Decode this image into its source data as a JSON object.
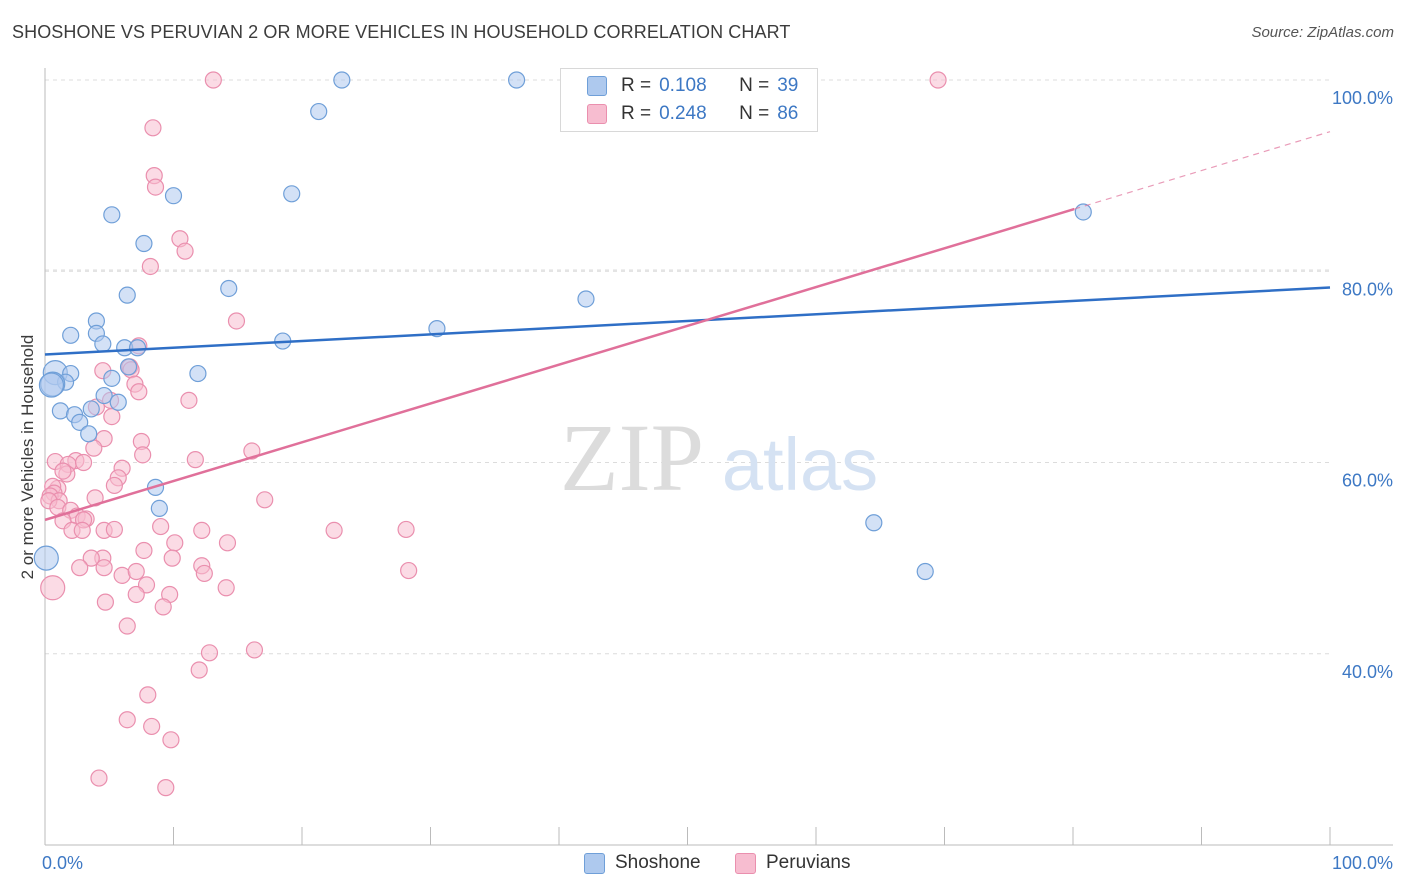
{
  "header": {
    "title": "SHOSHONE VS PERUVIAN 2 OR MORE VEHICLES IN HOUSEHOLD CORRELATION CHART",
    "source": "Source: ZipAtlas.com"
  },
  "watermark": {
    "zip": "ZIP",
    "atlas": "atlas"
  },
  "legend_top": {
    "rows": [
      {
        "r_label": "R =",
        "r_value": "0.108",
        "n_label": "N =",
        "n_value": "39"
      },
      {
        "r_label": "R =",
        "r_value": "0.248",
        "n_label": "N =",
        "n_value": "86"
      }
    ]
  },
  "legend_bottom": {
    "items": [
      "Shoshone",
      "Peruvians"
    ]
  },
  "colors": {
    "shoshone_fill": "#aec9ee",
    "shoshone_stroke": "#6f9fd8",
    "shoshone_line": "#2f6fc6",
    "peruvian_fill": "#f7bdd0",
    "peruvian_stroke": "#ea8fae",
    "peruvian_line": "#e0709a",
    "tick": "#3d78c4",
    "grid": "#dcdcdc"
  },
  "chart_data": {
    "type": "scatter",
    "title": "SHOSHONE VS PERUVIAN 2 OR MORE VEHICLES IN HOUSEHOLD CORRELATION CHART",
    "xlabel": "",
    "ylabel": "2 or more Vehicles in Household",
    "xlim": [
      0,
      100
    ],
    "ylim": [
      20,
      100
    ],
    "x_tick_labels": [
      "0.0%",
      "100.0%"
    ],
    "y_ticks": [
      40,
      60,
      80,
      100
    ],
    "y_tick_labels": [
      "40.0%",
      "60.0%",
      "80.0%",
      "100.0%"
    ],
    "grid": true,
    "legend_position": "top-center",
    "series": [
      {
        "name": "Shoshone",
        "r": 0.108,
        "n": 39,
        "trend": {
          "x": [
            0,
            100
          ],
          "y": [
            71.3,
            78.3
          ],
          "style": "solid"
        },
        "points": [
          [
            23.1,
            100.0
          ],
          [
            36.7,
            100.0
          ],
          [
            21.3,
            96.7
          ],
          [
            19.2,
            88.1
          ],
          [
            10.0,
            87.9
          ],
          [
            5.2,
            85.9
          ],
          [
            7.7,
            82.9
          ],
          [
            80.8,
            86.2
          ],
          [
            14.3,
            78.2
          ],
          [
            6.4,
            77.5
          ],
          [
            42.1,
            77.1
          ],
          [
            4.0,
            74.8
          ],
          [
            30.5,
            74.0
          ],
          [
            2.0,
            73.3
          ],
          [
            4.0,
            73.5
          ],
          [
            18.5,
            72.7
          ],
          [
            4.5,
            72.4
          ],
          [
            6.2,
            72.0
          ],
          [
            7.2,
            72.0
          ],
          [
            6.5,
            70.0
          ],
          [
            0.8,
            69.4
          ],
          [
            2.0,
            69.3
          ],
          [
            11.9,
            69.3
          ],
          [
            5.2,
            68.8
          ],
          [
            1.6,
            68.4
          ],
          [
            0.6,
            68.2
          ],
          [
            4.6,
            67.0
          ],
          [
            5.7,
            66.3
          ],
          [
            1.2,
            65.4
          ],
          [
            3.6,
            65.6
          ],
          [
            2.3,
            65.0
          ],
          [
            2.7,
            64.2
          ],
          [
            3.4,
            63.0
          ],
          [
            8.6,
            57.4
          ],
          [
            8.9,
            55.2
          ],
          [
            64.5,
            53.7
          ],
          [
            68.5,
            48.6
          ],
          [
            0.1,
            50.0
          ],
          [
            0.5,
            68.1
          ]
        ]
      },
      {
        "name": "Peruvians",
        "r": 0.248,
        "n": 86,
        "trend": {
          "x": [
            0,
            80.1
          ],
          "y": [
            54.0,
            86.5
          ],
          "x_dashed_end": 100,
          "y_dashed_end": 94.6,
          "style": "solid-then-dashed"
        },
        "points": [
          [
            13.1,
            100.0
          ],
          [
            69.5,
            100.0
          ],
          [
            8.4,
            95.0
          ],
          [
            8.5,
            90.0
          ],
          [
            8.6,
            88.8
          ],
          [
            10.5,
            83.4
          ],
          [
            10.9,
            82.1
          ],
          [
            8.2,
            80.5
          ],
          [
            14.9,
            74.8
          ],
          [
            7.3,
            72.2
          ],
          [
            6.6,
            70.0
          ],
          [
            6.7,
            69.7
          ],
          [
            4.5,
            69.6
          ],
          [
            7.0,
            68.2
          ],
          [
            7.3,
            67.4
          ],
          [
            11.2,
            66.5
          ],
          [
            5.1,
            66.5
          ],
          [
            4.0,
            65.8
          ],
          [
            5.2,
            64.8
          ],
          [
            4.6,
            62.5
          ],
          [
            7.5,
            62.2
          ],
          [
            3.8,
            61.5
          ],
          [
            16.1,
            61.2
          ],
          [
            7.6,
            60.8
          ],
          [
            2.4,
            60.2
          ],
          [
            0.8,
            60.1
          ],
          [
            1.8,
            59.8
          ],
          [
            3.0,
            60.0
          ],
          [
            11.7,
            60.3
          ],
          [
            6.0,
            59.4
          ],
          [
            1.7,
            58.8
          ],
          [
            1.4,
            59.1
          ],
          [
            5.7,
            58.4
          ],
          [
            5.4,
            57.6
          ],
          [
            1.0,
            57.3
          ],
          [
            0.6,
            57.5
          ],
          [
            0.7,
            56.8
          ],
          [
            0.4,
            56.5
          ],
          [
            1.1,
            56.0
          ],
          [
            3.9,
            56.3
          ],
          [
            17.1,
            56.1
          ],
          [
            0.3,
            56.0
          ],
          [
            1.0,
            55.3
          ],
          [
            2.0,
            55.0
          ],
          [
            2.5,
            54.4
          ],
          [
            3.2,
            54.1
          ],
          [
            1.4,
            53.9
          ],
          [
            3.0,
            54.0
          ],
          [
            9.0,
            53.3
          ],
          [
            12.2,
            52.9
          ],
          [
            22.5,
            52.9
          ],
          [
            28.1,
            53.0
          ],
          [
            4.6,
            52.9
          ],
          [
            2.1,
            52.9
          ],
          [
            2.9,
            52.9
          ],
          [
            5.4,
            53.0
          ],
          [
            14.2,
            51.6
          ],
          [
            10.1,
            51.6
          ],
          [
            4.5,
            50.0
          ],
          [
            7.7,
            50.8
          ],
          [
            9.9,
            50.0
          ],
          [
            3.6,
            50.0
          ],
          [
            12.2,
            49.2
          ],
          [
            2.7,
            49.0
          ],
          [
            4.6,
            49.0
          ],
          [
            28.3,
            48.7
          ],
          [
            12.4,
            48.4
          ],
          [
            6.0,
            48.2
          ],
          [
            7.1,
            48.6
          ],
          [
            7.9,
            47.2
          ],
          [
            0.6,
            46.9
          ],
          [
            14.1,
            46.9
          ],
          [
            7.1,
            46.2
          ],
          [
            9.7,
            46.2
          ],
          [
            4.7,
            45.4
          ],
          [
            9.2,
            44.9
          ],
          [
            6.4,
            42.9
          ],
          [
            16.3,
            40.4
          ],
          [
            12.0,
            38.3
          ],
          [
            8.0,
            35.7
          ],
          [
            6.4,
            33.1
          ],
          [
            8.3,
            32.4
          ],
          [
            9.8,
            31.0
          ],
          [
            4.2,
            27.0
          ],
          [
            9.4,
            26.0
          ],
          [
            12.8,
            40.1
          ]
        ]
      }
    ]
  }
}
